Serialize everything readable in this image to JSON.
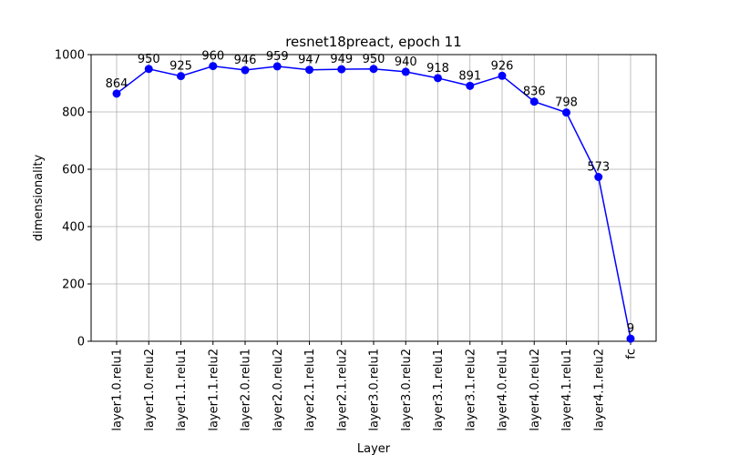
{
  "chart_data": {
    "type": "line",
    "title": "resnet18preact, epoch 11",
    "xlabel": "Layer",
    "ylabel": "dimensionality",
    "categories": [
      "layer1.0.relu1",
      "layer1.0.relu2",
      "layer1.1.relu1",
      "layer1.1.relu2",
      "layer2.0.relu1",
      "layer2.0.relu2",
      "layer2.1.relu1",
      "layer2.1.relu2",
      "layer3.0.relu1",
      "layer3.0.relu2",
      "layer3.1.relu1",
      "layer3.1.relu2",
      "layer4.0.relu1",
      "layer4.0.relu2",
      "layer4.1.relu1",
      "layer4.1.relu2",
      "fc"
    ],
    "series": [
      {
        "values": [
          864,
          950,
          925,
          960,
          946,
          959,
          947,
          949,
          950,
          940,
          918,
          891,
          926,
          836,
          798,
          573,
          9
        ]
      }
    ],
    "data_labels": [
      "864",
      "950",
      "925",
      "960",
      "946",
      "959",
      "947",
      "949",
      "950",
      "940",
      "918",
      "891",
      "926",
      "836",
      "798",
      "573",
      "9"
    ],
    "ylim": [
      0,
      1000
    ],
    "yticks": [
      0,
      200,
      400,
      600,
      800,
      1000
    ],
    "ytick_labels": [
      "0",
      "200",
      "400",
      "600",
      "800",
      "1000"
    ],
    "grid": true,
    "line_color": "#0000ff",
    "marker": "circle"
  }
}
